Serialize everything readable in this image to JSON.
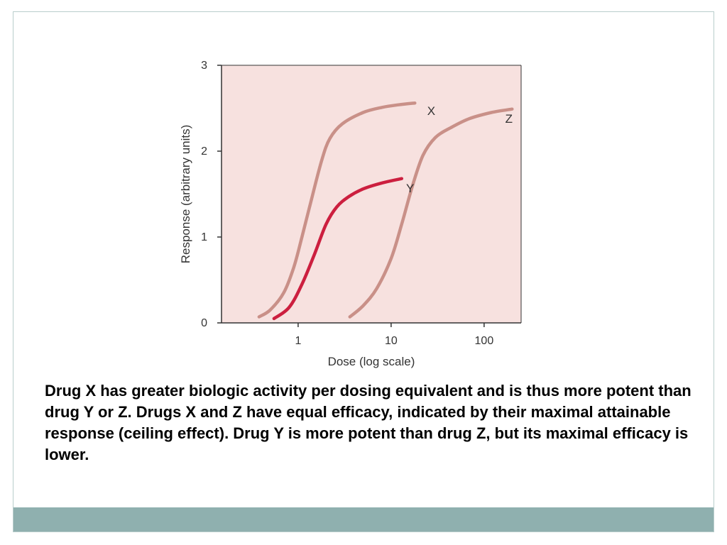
{
  "chart_data": {
    "type": "line",
    "title": "",
    "xlabel": "Dose (log scale)",
    "ylabel": "Response (arbitrary units)",
    "xscale": "log",
    "xlim": [
      0.15,
      250
    ],
    "ylim": [
      0,
      3
    ],
    "xticks": [
      1,
      10,
      100
    ],
    "xtick_labels": [
      "1",
      "10",
      "100"
    ],
    "yticks": [
      0,
      1,
      2,
      3
    ],
    "ytick_labels": [
      "0",
      "1",
      "2",
      "3"
    ],
    "grid": false,
    "legend": "none",
    "background_color": "#f7e1df",
    "series": [
      {
        "name": "X",
        "color": "#c99088",
        "points": [
          [
            0.38,
            0.07
          ],
          [
            0.5,
            0.15
          ],
          [
            0.7,
            0.35
          ],
          [
            0.9,
            0.65
          ],
          [
            1.1,
            1.0
          ],
          [
            1.4,
            1.45
          ],
          [
            1.8,
            1.9
          ],
          [
            2.2,
            2.15
          ],
          [
            3,
            2.32
          ],
          [
            5,
            2.45
          ],
          [
            8,
            2.51
          ],
          [
            12,
            2.54
          ],
          [
            18,
            2.56
          ]
        ]
      },
      {
        "name": "Y",
        "color": "#cc1f3f",
        "points": [
          [
            0.55,
            0.05
          ],
          [
            0.8,
            0.18
          ],
          [
            1.1,
            0.45
          ],
          [
            1.5,
            0.8
          ],
          [
            2,
            1.15
          ],
          [
            2.6,
            1.35
          ],
          [
            3.5,
            1.47
          ],
          [
            5,
            1.56
          ],
          [
            8,
            1.63
          ],
          [
            13,
            1.68
          ]
        ]
      },
      {
        "name": "Z",
        "color": "#c99088",
        "points": [
          [
            3.6,
            0.07
          ],
          [
            5,
            0.2
          ],
          [
            7,
            0.4
          ],
          [
            10,
            0.75
          ],
          [
            13,
            1.15
          ],
          [
            17,
            1.6
          ],
          [
            22,
            1.95
          ],
          [
            30,
            2.16
          ],
          [
            45,
            2.28
          ],
          [
            70,
            2.38
          ],
          [
            120,
            2.45
          ],
          [
            200,
            2.49
          ]
        ]
      }
    ],
    "annotations": [
      {
        "text": "X",
        "x": 27,
        "y": 2.42
      },
      {
        "text": "Y",
        "x": 16,
        "y": 1.52
      },
      {
        "text": "Z",
        "x": 185,
        "y": 2.33
      }
    ]
  },
  "caption": "Drug X has greater biologic activity per dosing equivalent and is thus more potent than drug Y or Z. Drugs X and Z have equal efficacy, indicated by their maximal attainable response (ceiling effect). Drug Y is more potent than drug Z, but its maximal efficacy is lower.",
  "colors": {
    "footer_bar": "#8fb0af",
    "slide_border": "#b9cdcc"
  }
}
